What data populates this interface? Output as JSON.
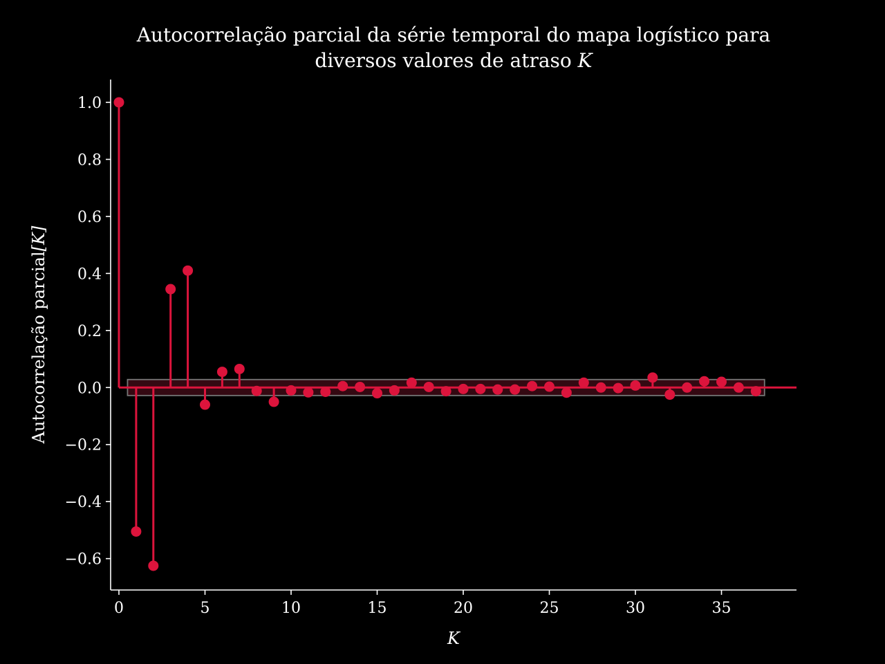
{
  "chart_data": {
    "type": "stem",
    "title_line1": "Autocorrelação parcial da série temporal do mapa logístico para",
    "title_line2_prefix": "diversos valores de atraso ",
    "title_line2_var": "K",
    "xlabel": "K",
    "ylabel_prefix": "Autocorrelação parcial",
    "ylabel_var": "[K]",
    "xlim": [
      -0.5,
      39.3
    ],
    "ylim": [
      -0.71,
      1.08
    ],
    "xticks": [
      0,
      5,
      10,
      15,
      20,
      25,
      30,
      35
    ],
    "yticks": [
      -0.6,
      -0.4,
      -0.2,
      0.0,
      0.2,
      0.4,
      0.6,
      0.8,
      1.0
    ],
    "ytick_labels": [
      "−0.6",
      "−0.4",
      "−0.2",
      "0.0",
      "0.2",
      "0.4",
      "0.6",
      "0.8",
      "1.0"
    ],
    "confidence_band": [
      -0.028,
      0.028
    ],
    "confidence_band_x": [
      0.5,
      37.5
    ],
    "x": [
      0,
      1,
      2,
      3,
      4,
      5,
      6,
      7,
      8,
      9,
      10,
      11,
      12,
      13,
      14,
      15,
      16,
      17,
      18,
      19,
      20,
      21,
      22,
      23,
      24,
      25,
      26,
      27,
      28,
      29,
      30,
      31,
      32,
      33,
      34,
      35,
      36,
      37
    ],
    "values": [
      1.0,
      -0.505,
      -0.625,
      0.345,
      0.41,
      -0.06,
      0.055,
      0.065,
      -0.012,
      -0.05,
      -0.01,
      -0.017,
      -0.015,
      0.005,
      0.002,
      -0.02,
      -0.01,
      0.017,
      0.002,
      -0.013,
      -0.005,
      -0.005,
      -0.007,
      -0.007,
      0.005,
      0.003,
      -0.018,
      0.017,
      0.0,
      -0.002,
      0.007,
      0.035,
      -0.025,
      0.0,
      0.022,
      0.02,
      0.0,
      -0.013
    ],
    "colors": {
      "background": "#000000",
      "stem": "#dc143c",
      "axis": "#ffffff",
      "band_fill": "#3a0a14",
      "band_edge": "#777777"
    }
  }
}
